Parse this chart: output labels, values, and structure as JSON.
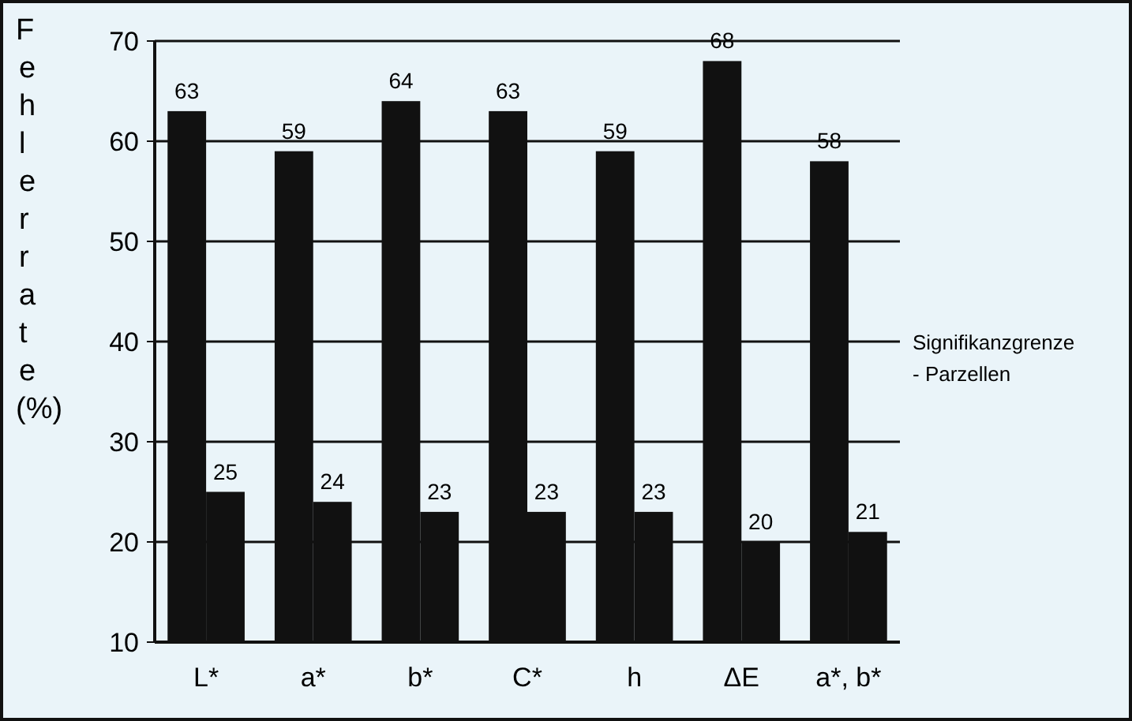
{
  "chart_data": {
    "type": "bar",
    "ylabel": "Fehlerrate (%)",
    "categories": [
      "L*",
      "a*",
      "b*",
      "C*",
      "h",
      "ΔE",
      "a*, b*"
    ],
    "series": [
      {
        "color": "#111111",
        "values": [
          63,
          59,
          64,
          63,
          59,
          68,
          58
        ]
      },
      {
        "color": "#111111",
        "values": [
          25,
          24,
          23,
          23,
          23,
          20,
          21
        ]
      }
    ],
    "ylim": [
      10,
      70
    ],
    "yticks": [
      10,
      20,
      30,
      40,
      50,
      60,
      70
    ],
    "grid": "y",
    "data_labels": true,
    "annotations": [
      "Signifikanzgrenze",
      "- Parzellen"
    ]
  }
}
